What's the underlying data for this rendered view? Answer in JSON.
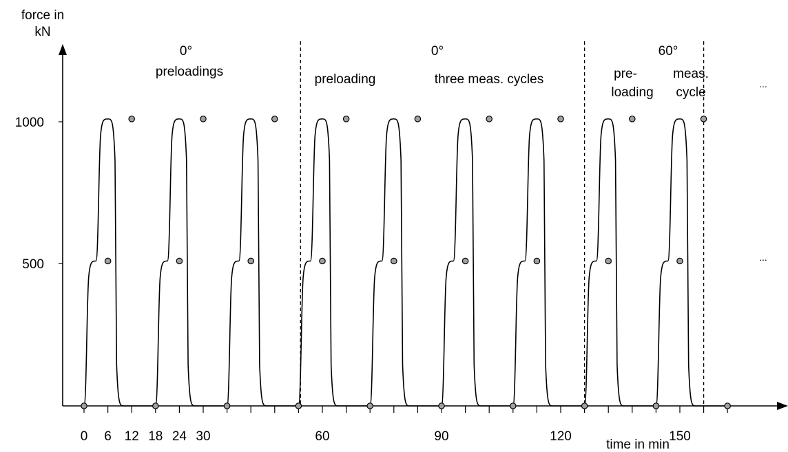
{
  "chart_data": {
    "type": "line",
    "ylabel_line1": "force in",
    "ylabel_line2": "kN",
    "xlabel": "time in min",
    "y_ticks": [
      {
        "value": 500,
        "label": "500"
      },
      {
        "value": 1000,
        "label": "1000"
      }
    ],
    "x_tick_values": [
      0,
      6,
      12,
      18,
      24,
      30,
      36,
      42,
      48,
      54,
      60,
      66,
      72,
      78,
      84,
      90,
      96,
      102,
      108,
      114,
      120,
      126,
      132,
      138,
      144,
      150,
      156,
      162
    ],
    "x_tick_labels": [
      {
        "value": 0,
        "label": "0"
      },
      {
        "value": 6,
        "label": "6"
      },
      {
        "value": 12,
        "label": "12"
      },
      {
        "value": 18,
        "label": "18"
      },
      {
        "value": 24,
        "label": "24"
      },
      {
        "value": 30,
        "label": "30"
      },
      {
        "value": 60,
        "label": "60"
      },
      {
        "value": 90,
        "label": "90"
      },
      {
        "value": 120,
        "label": "120"
      },
      {
        "value": 150,
        "label": "150"
      }
    ],
    "cycle_starts": [
      0,
      18,
      36,
      54,
      72,
      90,
      108,
      126,
      144
    ],
    "levels": [
      0,
      510,
      1010
    ],
    "phase_boundaries": [
      54.5,
      126,
      156
    ],
    "sections": [
      {
        "angle": "0°",
        "notes": [
          "preloadings"
        ]
      },
      {
        "angle": "0°",
        "notes": [
          "preloading",
          "three meas. cycles"
        ]
      },
      {
        "angle": "60°",
        "notes": [
          "pre-",
          "loading",
          "meas.",
          "cycle"
        ]
      }
    ],
    "ellipsis": [
      "...",
      "..."
    ],
    "line_color": "#000000",
    "marker_color": "#a0a0a0"
  }
}
